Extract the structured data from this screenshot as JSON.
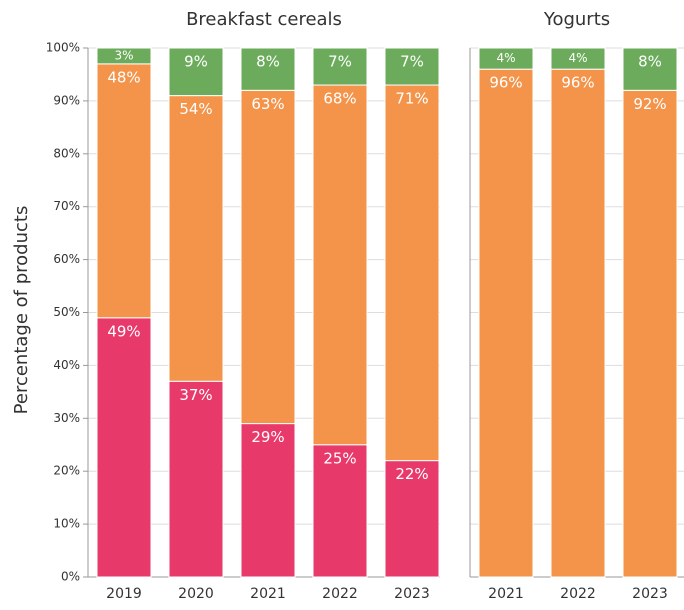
{
  "chart_data": [
    {
      "type": "stacked_bar",
      "title": "Breakfast cereals",
      "ylabel": "Percentage of products",
      "categories": [
        "2019",
        "2020",
        "2021",
        "2022",
        "2023"
      ],
      "series": [
        {
          "color": "#e8396b",
          "values": [
            49,
            37,
            29,
            25,
            22
          ],
          "value_labels": [
            "49%",
            "37%",
            "29%",
            "25%",
            "22%"
          ]
        },
        {
          "color": "#f4944b",
          "values": [
            48,
            54,
            63,
            68,
            71
          ],
          "value_labels": [
            "48%",
            "54%",
            "63%",
            "68%",
            "71%"
          ]
        },
        {
          "color": "#6bab5b",
          "values": [
            3,
            9,
            8,
            7,
            7
          ],
          "value_labels": [
            "3%",
            "9%",
            "8%",
            "7%",
            "7%"
          ]
        }
      ],
      "ylim": [
        0,
        100
      ],
      "yticks": [
        {
          "value": 0,
          "label": "0%"
        },
        {
          "value": 10,
          "label": "10%"
        },
        {
          "value": 20,
          "label": "20%"
        },
        {
          "value": 30,
          "label": "30%"
        },
        {
          "value": 40,
          "label": "40%"
        },
        {
          "value": 50,
          "label": "50%"
        },
        {
          "value": 60,
          "label": "60%"
        },
        {
          "value": 70,
          "label": "70%"
        },
        {
          "value": 80,
          "label": "80%"
        },
        {
          "value": 90,
          "label": "90%"
        },
        {
          "value": 100,
          "label": "100%"
        }
      ],
      "grid": true
    },
    {
      "type": "stacked_bar",
      "title": "Yogurts",
      "categories": [
        "2021",
        "2022",
        "2023"
      ],
      "series": [
        {
          "color": "#f4944b",
          "values": [
            96,
            96,
            92
          ],
          "value_labels": [
            "96%",
            "96%",
            "92%"
          ]
        },
        {
          "color": "#6bab5b",
          "values": [
            4,
            4,
            8
          ],
          "value_labels": [
            "4%",
            "4%",
            "8%"
          ]
        }
      ],
      "ylim": [
        0,
        100
      ],
      "grid": true
    }
  ]
}
